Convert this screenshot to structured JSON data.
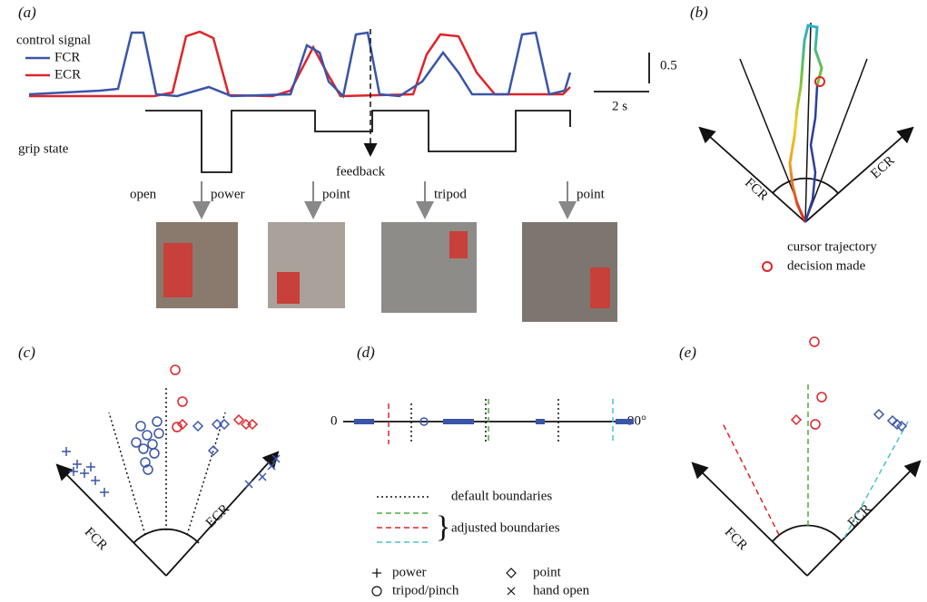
{
  "panel_a": {
    "label": "(a)",
    "control_signal": "control signal",
    "legend": [
      "FCR",
      "ECR"
    ],
    "scale_y": "0.5",
    "scale_x": "2 s",
    "grip_state": "grip state",
    "feedback": "feedback",
    "grips": [
      "open",
      "power",
      "point",
      "tripod",
      "point"
    ]
  },
  "panel_b": {
    "label": "(b)",
    "axes": [
      "FCR",
      "ECR"
    ],
    "legend": [
      "cursor trajectory",
      "decision made"
    ]
  },
  "panel_c": {
    "label": "(c)",
    "axes": [
      "FCR",
      "ECR"
    ]
  },
  "panel_d": {
    "label": "(d)",
    "axis_start": "0",
    "axis_end": "90°",
    "boundaries": [
      "default boundaries",
      "adjusted boundaries"
    ],
    "markers": [
      "power",
      "point",
      "tripod/pinch",
      "hand open"
    ]
  },
  "panel_e": {
    "label": "(e)",
    "axes": [
      "FCR",
      "ECR"
    ]
  }
}
